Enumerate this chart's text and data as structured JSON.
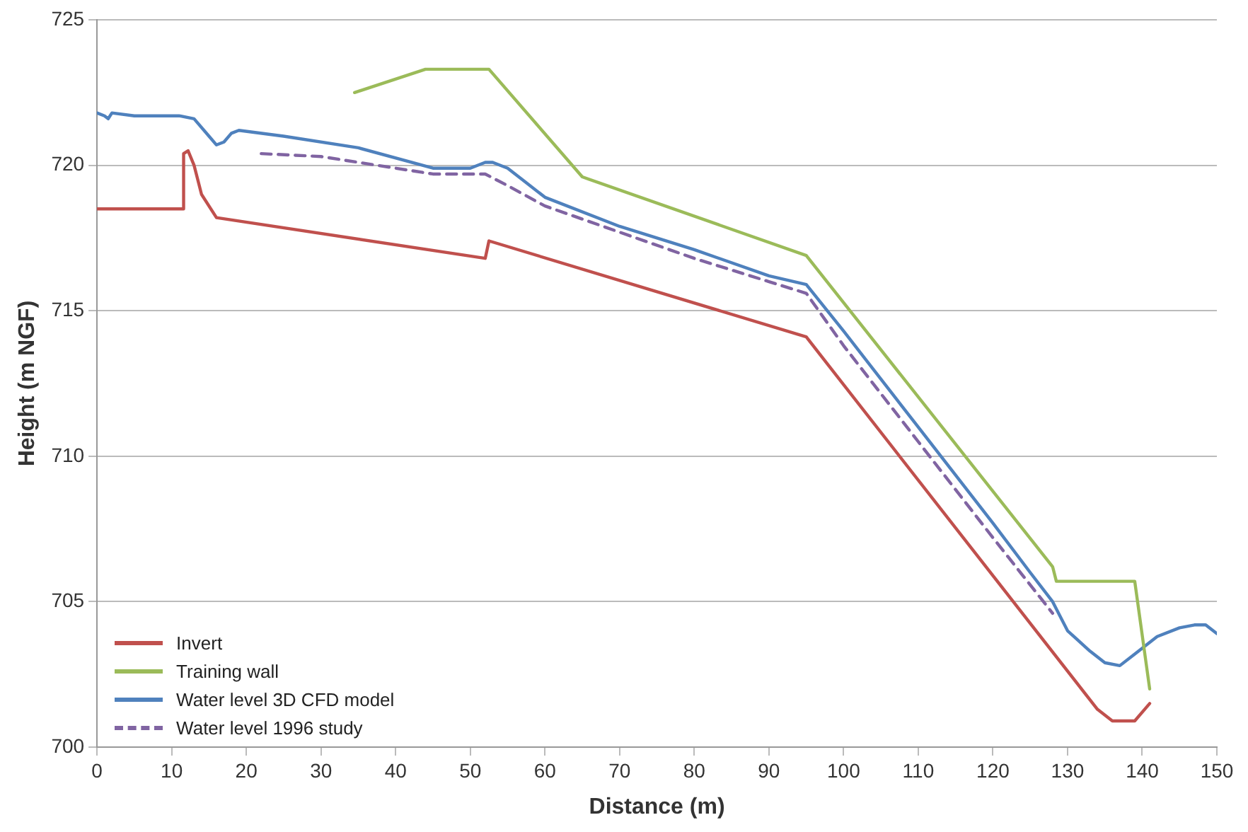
{
  "chart_data": {
    "type": "line",
    "xlabel": "Distance (m)",
    "ylabel": "Height (m NGF)",
    "xlim": [
      0,
      150
    ],
    "xticks": [
      0,
      10,
      20,
      30,
      40,
      50,
      60,
      70,
      80,
      90,
      100,
      110,
      120,
      130,
      140,
      150
    ],
    "ylim": [
      700,
      725
    ],
    "yticks": [
      700,
      705,
      710,
      715,
      720,
      725
    ],
    "grid": "y",
    "legend": "bottom left",
    "marker": "none",
    "series": [
      {
        "name": "Invert",
        "color": "#c0504d",
        "x": [
          0,
          11.5,
          11.6,
          12.2,
          13,
          14,
          16,
          52,
          52.5,
          95,
          134,
          136,
          139,
          141
        ],
        "values": [
          718.5,
          718.5,
          720.4,
          720.5,
          720,
          719,
          718.2,
          716.8,
          717.4,
          714.1,
          701.3,
          700.9,
          700.9,
          701.5
        ]
      },
      {
        "name": "Training wall",
        "color": "#9bbb59",
        "x": [
          34.5,
          44,
          52.5,
          65,
          95,
          128,
          128.5,
          139,
          141
        ],
        "values": [
          722.5,
          723.3,
          723.3,
          719.6,
          716.9,
          706.2,
          705.7,
          705.7,
          702
        ]
      },
      {
        "name": "Water level 3D CFD model",
        "color": "#4f81bd",
        "x": [
          0,
          1,
          1.5,
          2,
          5,
          11,
          13,
          15,
          16,
          17,
          18,
          19,
          25,
          35,
          45,
          50,
          52,
          53,
          55,
          60,
          70,
          80,
          90,
          95,
          100,
          110,
          120,
          125,
          128,
          130,
          133,
          135,
          137,
          139,
          142,
          145,
          147,
          148.5,
          150
        ],
        "values": [
          721.8,
          721.7,
          721.6,
          721.8,
          721.7,
          721.7,
          721.6,
          721,
          720.7,
          720.8,
          721.1,
          721.2,
          721,
          720.6,
          719.9,
          719.9,
          720.1,
          720.1,
          719.9,
          718.9,
          717.9,
          717.1,
          716.2,
          715.9,
          714.3,
          711,
          707.7,
          706,
          705,
          704,
          703.3,
          702.9,
          702.8,
          703.2,
          703.8,
          704.1,
          704.2,
          704.2,
          703.9
        ]
      },
      {
        "name": "Water level 1996 study",
        "color": "#8064a2",
        "line_style": "dashed",
        "x": [
          22,
          30,
          35,
          40,
          45,
          52,
          55,
          60,
          70,
          80,
          90,
          95,
          100,
          110,
          120,
          128
        ],
        "values": [
          720.4,
          720.3,
          720.1,
          719.9,
          719.7,
          719.7,
          719.3,
          718.6,
          717.7,
          716.8,
          716,
          715.6,
          713.8,
          710.5,
          707.2,
          704.6
        ]
      }
    ]
  }
}
